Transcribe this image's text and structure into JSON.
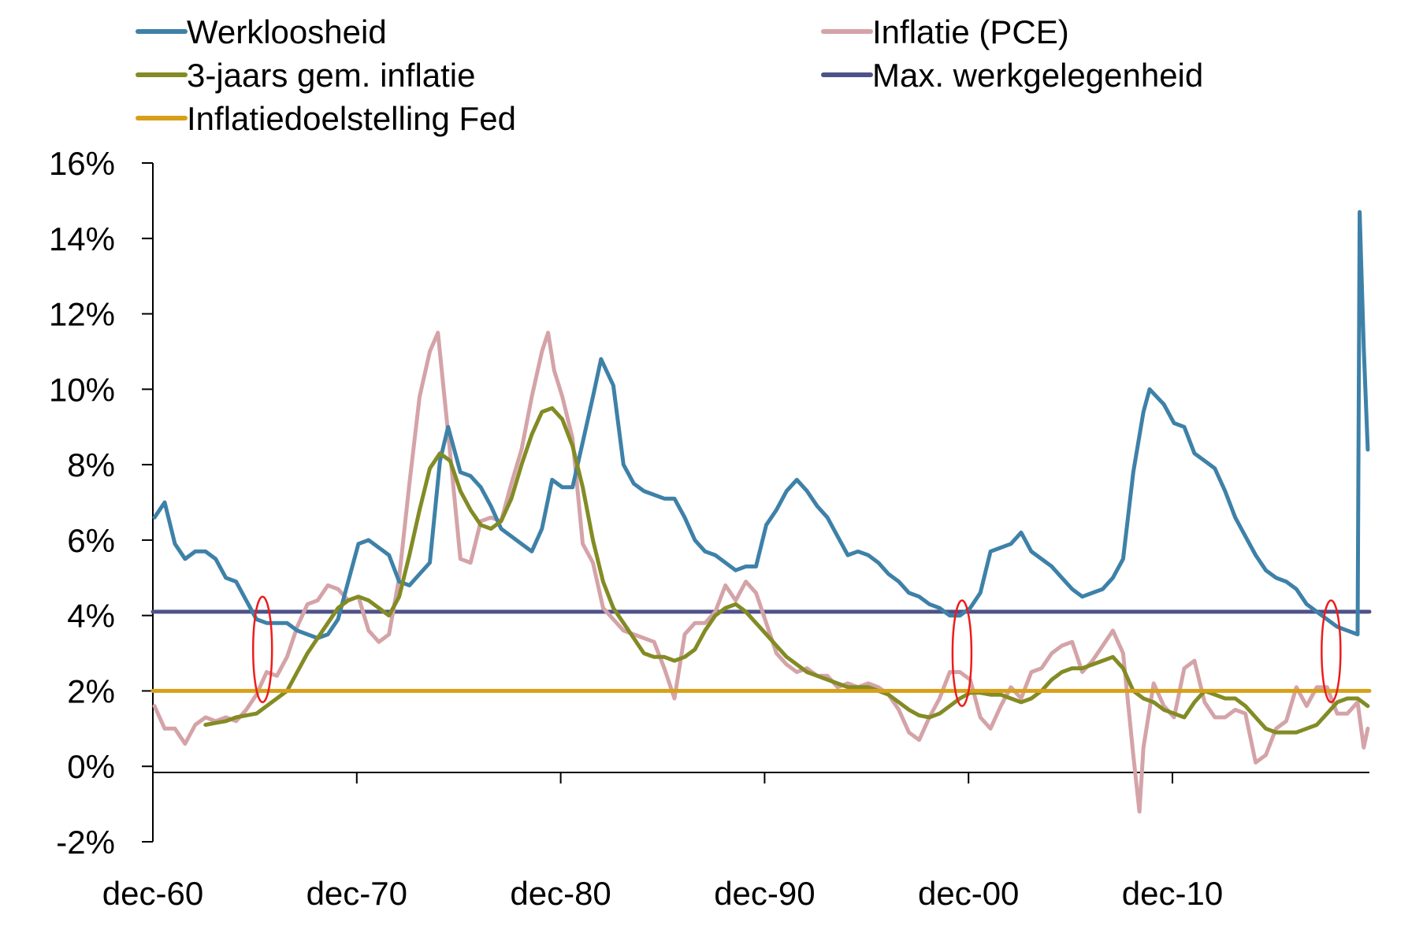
{
  "chart_data": {
    "type": "line",
    "x_unit": "year",
    "xlim": [
      1960.92,
      2020.58
    ],
    "ylim": [
      -2,
      16
    ],
    "y_ticks": [
      {
        "value": -2,
        "label": "-2%"
      },
      {
        "value": 0,
        "label": "0%"
      },
      {
        "value": 2,
        "label": "2%"
      },
      {
        "value": 4,
        "label": "4%"
      },
      {
        "value": 6,
        "label": "6%"
      },
      {
        "value": 8,
        "label": "8%"
      },
      {
        "value": 10,
        "label": "10%"
      },
      {
        "value": 12,
        "label": "12%"
      },
      {
        "value": 14,
        "label": "14%"
      },
      {
        "value": 16,
        "label": "16%"
      }
    ],
    "x_ticks": [
      {
        "value": 1960.92,
        "label": "dec-60"
      },
      {
        "value": 1970.92,
        "label": "dec-70"
      },
      {
        "value": 1980.92,
        "label": "dec-80"
      },
      {
        "value": 1990.92,
        "label": "dec-90"
      },
      {
        "value": 2000.92,
        "label": "dec-00"
      },
      {
        "value": 2010.92,
        "label": "dec-10"
      }
    ],
    "grid": false,
    "legend_position": "top",
    "legend": [
      {
        "label": "Werkloosheid",
        "color": "#3e81a8"
      },
      {
        "label": "Inflatie (PCE)",
        "color": "#d4a3a8"
      },
      {
        "label": "3-jaars gem. inflatie",
        "color": "#838b25"
      },
      {
        "label": "Max. werkgelegenheid",
        "color": "#4e5288"
      },
      {
        "label": "Inflatiedoelstelling Fed",
        "color": "#d7a018"
      }
    ],
    "series": [
      {
        "name": "Werkloosheid",
        "color": "#3e81a8",
        "x": [
          1961.0,
          1961.5,
          1962.0,
          1962.5,
          1963.0,
          1963.5,
          1964.0,
          1964.5,
          1965.0,
          1965.5,
          1966.0,
          1966.5,
          1967.0,
          1967.5,
          1968.0,
          1968.5,
          1969.0,
          1969.5,
          1970.0,
          1970.5,
          1971.0,
          1971.5,
          1972.0,
          1972.5,
          1973.0,
          1973.5,
          1974.0,
          1974.5,
          1975.0,
          1975.4,
          1976.0,
          1976.5,
          1977.0,
          1977.5,
          1978.0,
          1978.5,
          1979.0,
          1979.5,
          1980.0,
          1980.5,
          1981.0,
          1981.5,
          1982.0,
          1982.5,
          1982.9,
          1983.5,
          1984.0,
          1984.5,
          1985.0,
          1985.5,
          1986.0,
          1986.5,
          1987.0,
          1987.5,
          1988.0,
          1988.5,
          1989.0,
          1989.5,
          1990.0,
          1990.5,
          1991.0,
          1991.5,
          1992.0,
          1992.5,
          1993.0,
          1993.5,
          1994.0,
          1994.5,
          1995.0,
          1995.5,
          1996.0,
          1996.5,
          1997.0,
          1997.5,
          1998.0,
          1998.5,
          1999.0,
          1999.5,
          2000.0,
          2000.5,
          2001.0,
          2001.5,
          2002.0,
          2002.5,
          2003.0,
          2003.5,
          2004.0,
          2004.5,
          2005.0,
          2005.5,
          2006.0,
          2006.5,
          2007.0,
          2007.5,
          2008.0,
          2008.5,
          2009.0,
          2009.5,
          2009.8,
          2010.5,
          2011.0,
          2011.5,
          2012.0,
          2012.5,
          2013.0,
          2013.5,
          2014.0,
          2014.5,
          2015.0,
          2015.5,
          2016.0,
          2016.5,
          2017.0,
          2017.5,
          2018.0,
          2018.5,
          2019.0,
          2019.5,
          2020.0,
          2020.1,
          2020.3,
          2020.5
        ],
        "values": [
          6.6,
          7.0,
          5.9,
          5.5,
          5.7,
          5.7,
          5.5,
          5.0,
          4.9,
          4.4,
          3.9,
          3.8,
          3.8,
          3.8,
          3.6,
          3.5,
          3.4,
          3.5,
          3.9,
          4.9,
          5.9,
          6.0,
          5.8,
          5.6,
          4.9,
          4.8,
          5.1,
          5.4,
          8.1,
          9.0,
          7.8,
          7.7,
          7.4,
          6.9,
          6.3,
          6.1,
          5.9,
          5.7,
          6.3,
          7.6,
          7.4,
          7.4,
          8.6,
          9.8,
          10.8,
          10.1,
          8.0,
          7.5,
          7.3,
          7.2,
          7.1,
          7.1,
          6.6,
          6.0,
          5.7,
          5.6,
          5.4,
          5.2,
          5.3,
          5.3,
          6.4,
          6.8,
          7.3,
          7.6,
          7.3,
          6.9,
          6.6,
          6.1,
          5.6,
          5.7,
          5.6,
          5.4,
          5.1,
          4.9,
          4.6,
          4.5,
          4.3,
          4.2,
          4.0,
          4.0,
          4.2,
          4.6,
          5.7,
          5.8,
          5.9,
          6.2,
          5.7,
          5.5,
          5.3,
          5.0,
          4.7,
          4.5,
          4.6,
          4.7,
          5.0,
          5.5,
          7.8,
          9.4,
          10.0,
          9.6,
          9.1,
          9.0,
          8.3,
          8.1,
          7.9,
          7.3,
          6.6,
          6.1,
          5.6,
          5.2,
          5.0,
          4.9,
          4.7,
          4.3,
          4.1,
          3.9,
          3.7,
          3.6,
          3.5,
          14.7,
          11.1,
          8.4
        ]
      },
      {
        "name": "Inflatie (PCE)",
        "color": "#d4a3a8",
        "x": [
          1961.0,
          1961.5,
          1962.0,
          1962.5,
          1963.0,
          1963.5,
          1964.0,
          1964.5,
          1965.0,
          1965.5,
          1966.0,
          1966.5,
          1967.0,
          1967.5,
          1968.0,
          1968.5,
          1969.0,
          1969.5,
          1970.0,
          1970.5,
          1971.0,
          1971.5,
          1972.0,
          1972.5,
          1973.0,
          1973.5,
          1974.0,
          1974.5,
          1974.9,
          1975.5,
          1976.0,
          1976.5,
          1977.0,
          1977.5,
          1978.0,
          1978.5,
          1979.0,
          1979.5,
          1980.0,
          1980.3,
          1980.6,
          1981.0,
          1981.5,
          1982.0,
          1982.5,
          1983.0,
          1983.5,
          1984.0,
          1984.5,
          1985.0,
          1985.5,
          1986.0,
          1986.5,
          1987.0,
          1987.5,
          1988.0,
          1988.5,
          1989.0,
          1989.5,
          1990.0,
          1990.5,
          1991.0,
          1991.5,
          1992.0,
          1992.5,
          1993.0,
          1993.5,
          1994.0,
          1994.5,
          1995.0,
          1995.5,
          1996.0,
          1996.5,
          1997.0,
          1997.5,
          1998.0,
          1998.5,
          1999.0,
          1999.5,
          2000.0,
          2000.5,
          2001.0,
          2001.5,
          2002.0,
          2002.5,
          2003.0,
          2003.5,
          2004.0,
          2004.5,
          2005.0,
          2005.5,
          2006.0,
          2006.5,
          2007.0,
          2007.5,
          2008.0,
          2008.5,
          2009.0,
          2009.3,
          2009.5,
          2010.0,
          2010.5,
          2011.0,
          2011.5,
          2012.0,
          2012.5,
          2013.0,
          2013.5,
          2014.0,
          2014.5,
          2015.0,
          2015.5,
          2016.0,
          2016.5,
          2017.0,
          2017.5,
          2018.0,
          2018.5,
          2019.0,
          2019.5,
          2020.0,
          2020.3,
          2020.5
        ],
        "values": [
          1.6,
          1.0,
          1.0,
          0.6,
          1.1,
          1.3,
          1.2,
          1.3,
          1.2,
          1.5,
          1.9,
          2.5,
          2.4,
          2.9,
          3.7,
          4.3,
          4.4,
          4.8,
          4.7,
          4.4,
          4.5,
          3.6,
          3.3,
          3.5,
          5.0,
          7.5,
          9.8,
          11.0,
          11.5,
          8.3,
          5.5,
          5.4,
          6.5,
          6.6,
          6.5,
          7.5,
          8.4,
          9.8,
          11.0,
          11.5,
          10.5,
          9.8,
          8.7,
          5.9,
          5.4,
          4.2,
          3.9,
          3.6,
          3.5,
          3.4,
          3.3,
          2.6,
          1.8,
          3.5,
          3.8,
          3.8,
          4.1,
          4.8,
          4.4,
          4.9,
          4.6,
          3.8,
          3.0,
          2.7,
          2.5,
          2.6,
          2.4,
          2.4,
          2.1,
          2.2,
          2.1,
          2.2,
          2.1,
          1.9,
          1.5,
          0.9,
          0.7,
          1.3,
          1.8,
          2.5,
          2.5,
          2.3,
          1.3,
          1.0,
          1.6,
          2.1,
          1.8,
          2.5,
          2.6,
          3.0,
          3.2,
          3.3,
          2.5,
          2.8,
          3.2,
          3.6,
          3.0,
          0.3,
          -1.2,
          0.5,
          2.2,
          1.6,
          1.3,
          2.6,
          2.8,
          1.7,
          1.3,
          1.3,
          1.5,
          1.4,
          0.1,
          0.3,
          1.0,
          1.2,
          2.1,
          1.6,
          2.1,
          2.1,
          1.4,
          1.4,
          1.7,
          0.5,
          1.0
        ]
      },
      {
        "name": "3-jaars gem. inflatie",
        "color": "#838b25",
        "x": [
          1963.5,
          1964.0,
          1964.5,
          1965.0,
          1965.5,
          1966.0,
          1966.5,
          1967.0,
          1967.5,
          1968.0,
          1968.5,
          1969.0,
          1969.5,
          1970.0,
          1970.5,
          1971.0,
          1971.5,
          1972.0,
          1972.5,
          1973.0,
          1973.5,
          1974.0,
          1974.5,
          1975.0,
          1975.5,
          1976.0,
          1976.5,
          1977.0,
          1977.5,
          1978.0,
          1978.5,
          1979.0,
          1979.5,
          1980.0,
          1980.5,
          1981.0,
          1981.5,
          1982.0,
          1982.5,
          1983.0,
          1983.5,
          1984.0,
          1984.5,
          1985.0,
          1985.5,
          1986.0,
          1986.5,
          1987.0,
          1987.5,
          1988.0,
          1988.5,
          1989.0,
          1989.5,
          1990.0,
          1990.5,
          1991.0,
          1991.5,
          1992.0,
          1992.5,
          1993.0,
          1993.5,
          1994.0,
          1994.5,
          1995.0,
          1995.5,
          1996.0,
          1996.5,
          1997.0,
          1997.5,
          1998.0,
          1998.5,
          1999.0,
          1999.5,
          2000.0,
          2000.5,
          2001.0,
          2001.5,
          2002.0,
          2002.5,
          2003.0,
          2003.5,
          2004.0,
          2004.5,
          2005.0,
          2005.5,
          2006.0,
          2006.5,
          2007.0,
          2007.5,
          2008.0,
          2008.5,
          2009.0,
          2009.5,
          2010.0,
          2010.5,
          2011.0,
          2011.5,
          2012.0,
          2012.5,
          2013.0,
          2013.5,
          2014.0,
          2014.5,
          2015.0,
          2015.5,
          2016.0,
          2016.5,
          2017.0,
          2017.5,
          2018.0,
          2018.5,
          2019.0,
          2019.5,
          2020.0,
          2020.5
        ],
        "values": [
          1.1,
          1.15,
          1.2,
          1.3,
          1.35,
          1.4,
          1.6,
          1.8,
          2.0,
          2.5,
          3.0,
          3.4,
          3.8,
          4.2,
          4.4,
          4.5,
          4.4,
          4.2,
          4.0,
          4.5,
          5.6,
          6.8,
          7.9,
          8.3,
          8.1,
          7.3,
          6.8,
          6.4,
          6.3,
          6.5,
          7.1,
          8.0,
          8.8,
          9.4,
          9.5,
          9.2,
          8.5,
          7.4,
          6.0,
          4.9,
          4.2,
          3.8,
          3.4,
          3.0,
          2.9,
          2.9,
          2.8,
          2.9,
          3.1,
          3.6,
          4.0,
          4.2,
          4.3,
          4.1,
          3.8,
          3.5,
          3.2,
          2.9,
          2.7,
          2.5,
          2.4,
          2.3,
          2.2,
          2.1,
          2.1,
          2.1,
          2.0,
          1.9,
          1.7,
          1.5,
          1.35,
          1.3,
          1.4,
          1.6,
          1.8,
          1.95,
          1.95,
          1.9,
          1.9,
          1.8,
          1.7,
          1.8,
          2.0,
          2.3,
          2.5,
          2.6,
          2.6,
          2.7,
          2.8,
          2.9,
          2.6,
          2.0,
          1.8,
          1.7,
          1.5,
          1.4,
          1.3,
          1.7,
          2.0,
          1.9,
          1.8,
          1.8,
          1.6,
          1.3,
          1.0,
          0.9,
          0.9,
          0.9,
          1.0,
          1.1,
          1.4,
          1.7,
          1.8,
          1.8,
          1.6
        ]
      },
      {
        "name": "Max. werkgelegenheid",
        "color": "#4e5288",
        "x": [
          1960.92,
          2020.58
        ],
        "values": [
          4.1,
          4.1
        ]
      },
      {
        "name": "Inflatiedoelstelling Fed",
        "color": "#d7a018",
        "x": [
          1960.92,
          2020.58
        ],
        "values": [
          2.0,
          2.0
        ]
      }
    ],
    "annotations": [
      {
        "type": "ellipse",
        "color": "#ee1c1c",
        "x": 1966.3,
        "y_range": [
          1.7,
          4.5
        ]
      },
      {
        "type": "ellipse",
        "color": "#ee1c1c",
        "x": 2000.6,
        "y_range": [
          1.6,
          4.4
        ]
      },
      {
        "type": "ellipse",
        "color": "#ee1c1c",
        "x": 2018.7,
        "y_range": [
          1.7,
          4.4
        ]
      }
    ]
  }
}
